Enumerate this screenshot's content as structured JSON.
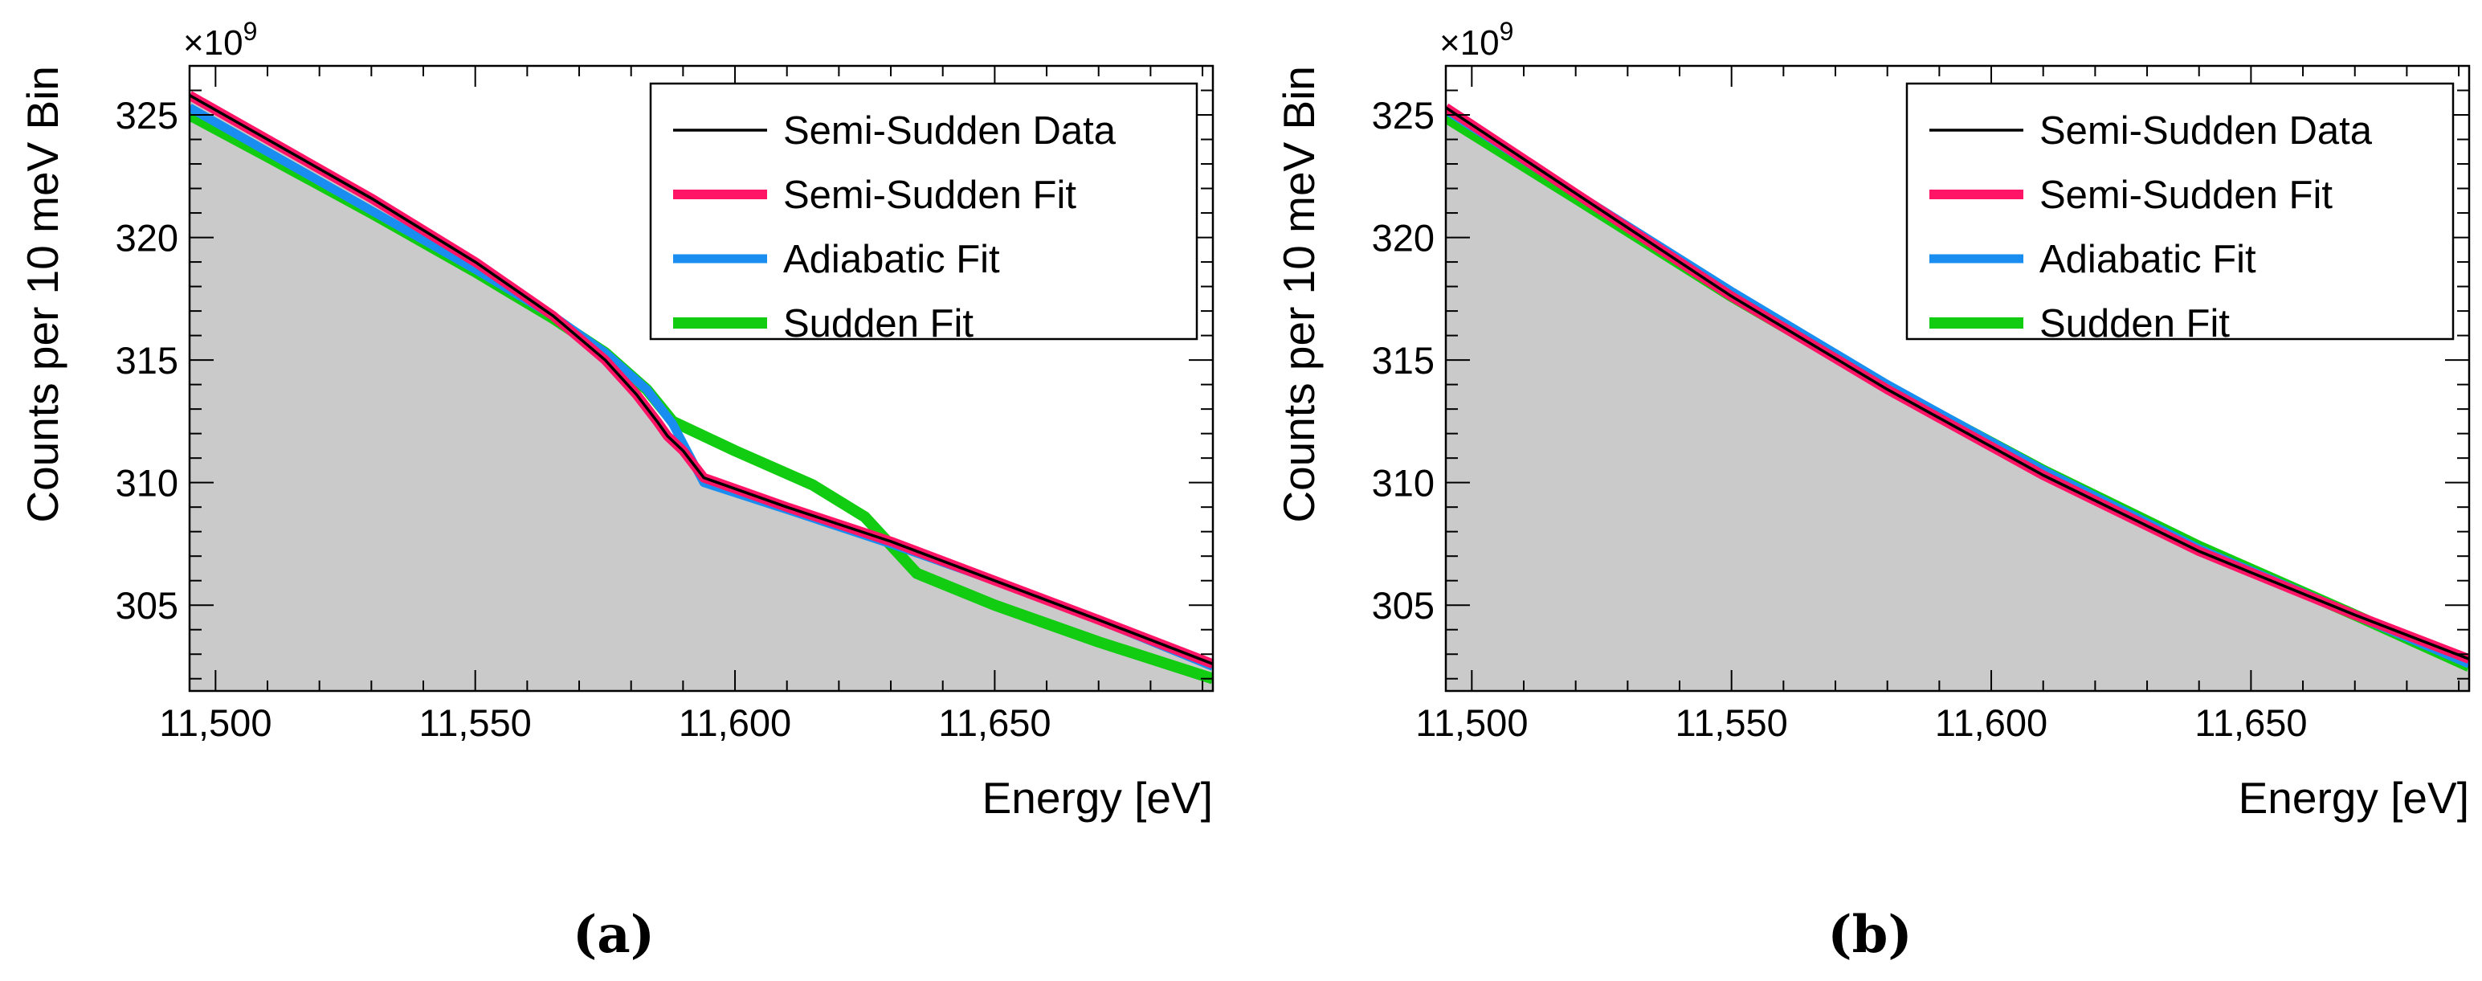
{
  "colors": {
    "data_line": "#000000",
    "semi_sudden_fit": "#ff1466",
    "adiabatic_fit": "#1a8ef0",
    "sudden_fit": "#11cc11",
    "histogram_fill": "#cacaca",
    "frame": "#000000"
  },
  "chart_data": [
    {
      "type": "line",
      "panel": "a",
      "caption": "(a)",
      "xlabel": "Energy [eV]",
      "ylabel": "Counts per 10 meV Bin",
      "y_exponent_label": "×10",
      "y_exponent": "9",
      "xlim": [
        11495,
        11692
      ],
      "ylim": [
        301.5,
        327
      ],
      "x_ticks": [
        11500,
        11550,
        11600,
        11650
      ],
      "x_tick_labels": [
        "11,500",
        "11,550",
        "11,600",
        "11,650"
      ],
      "y_ticks": [
        305,
        310,
        315,
        320,
        325
      ],
      "y_tick_labels": [
        "305",
        "310",
        "315",
        "320",
        "325"
      ],
      "legend_position": "top-right",
      "legend": [
        "Semi-Sudden Data",
        "Semi-Sudden Fit",
        "Adiabatic Fit",
        "Sudden Fit"
      ],
      "series": [
        {
          "name": "Semi-Sudden Data",
          "key": "data",
          "x": [
            11495,
            11510,
            11530,
            11550,
            11565,
            11575,
            11581,
            11585,
            11587,
            11590,
            11594,
            11610,
            11630,
            11650,
            11670,
            11692
          ],
          "y": [
            325.8,
            324.0,
            321.6,
            319.0,
            316.8,
            315.0,
            313.6,
            312.5,
            311.9,
            311.3,
            310.2,
            309.0,
            307.6,
            306.0,
            304.4,
            302.6
          ]
        },
        {
          "name": "Semi-Sudden Fit",
          "key": "semi",
          "x": [
            11495,
            11510,
            11530,
            11550,
            11565,
            11575,
            11581,
            11585,
            11587,
            11590,
            11594,
            11610,
            11630,
            11650,
            11670,
            11692
          ],
          "y": [
            325.8,
            324.0,
            321.6,
            319.0,
            316.8,
            315.0,
            313.6,
            312.5,
            311.9,
            311.3,
            310.2,
            309.0,
            307.6,
            306.0,
            304.4,
            302.6
          ]
        },
        {
          "name": "Adiabatic Fit",
          "key": "adiabatic",
          "x": [
            11495,
            11510,
            11530,
            11550,
            11565,
            11575,
            11583,
            11588,
            11594,
            11610,
            11630,
            11650,
            11670,
            11692
          ],
          "y": [
            325.3,
            323.5,
            321.1,
            318.7,
            316.8,
            315.3,
            313.8,
            312.4,
            310.0,
            308.9,
            307.5,
            306.0,
            304.4,
            302.5
          ]
        },
        {
          "name": "Sudden Fit",
          "key": "sudden",
          "x": [
            11495,
            11510,
            11530,
            11550,
            11565,
            11575,
            11583,
            11588,
            11600,
            11615,
            11625,
            11635,
            11650,
            11670,
            11692
          ],
          "y": [
            325.0,
            323.3,
            321.0,
            318.6,
            316.7,
            315.3,
            313.8,
            312.5,
            311.3,
            309.9,
            308.6,
            306.3,
            305.0,
            303.5,
            302.0
          ]
        }
      ]
    },
    {
      "type": "line",
      "panel": "b",
      "caption": "(b)",
      "xlabel": "Energy [eV]",
      "ylabel": "Counts per 10 meV Bin",
      "y_exponent_label": "×10",
      "y_exponent": "9",
      "xlim": [
        11495,
        11692
      ],
      "ylim": [
        301.5,
        327
      ],
      "x_ticks": [
        11500,
        11550,
        11600,
        11650
      ],
      "x_tick_labels": [
        "11,500",
        "11,550",
        "11,600",
        "11,650"
      ],
      "y_ticks": [
        305,
        310,
        315,
        320,
        325
      ],
      "y_tick_labels": [
        "305",
        "310",
        "315",
        "320",
        "325"
      ],
      "legend_position": "top-right",
      "legend": [
        "Semi-Sudden Data",
        "Semi-Sudden Fit",
        "Adiabatic Fit",
        "Sudden Fit"
      ],
      "series": [
        {
          "name": "Semi-Sudden Data",
          "key": "data",
          "x": [
            11495,
            11520,
            11550,
            11580,
            11610,
            11640,
            11670,
            11692
          ],
          "y": [
            325.3,
            321.8,
            317.6,
            313.8,
            310.3,
            307.2,
            304.6,
            302.8
          ]
        },
        {
          "name": "Semi-Sudden Fit",
          "key": "semi",
          "x": [
            11495,
            11520,
            11550,
            11580,
            11610,
            11640,
            11670,
            11692
          ],
          "y": [
            325.3,
            321.8,
            317.6,
            313.8,
            310.3,
            307.2,
            304.6,
            302.8
          ]
        },
        {
          "name": "Adiabatic Fit",
          "key": "adiabatic",
          "x": [
            11495,
            11520,
            11550,
            11580,
            11610,
            11640,
            11670,
            11692
          ],
          "y": [
            325.2,
            321.8,
            317.8,
            314.0,
            310.5,
            307.3,
            304.6,
            302.6
          ]
        },
        {
          "name": "Sudden Fit",
          "key": "sudden",
          "x": [
            11495,
            11520,
            11550,
            11580,
            11610,
            11640,
            11670,
            11692
          ],
          "y": [
            324.9,
            321.6,
            317.6,
            313.9,
            310.5,
            307.4,
            304.6,
            302.5
          ]
        }
      ]
    }
  ]
}
